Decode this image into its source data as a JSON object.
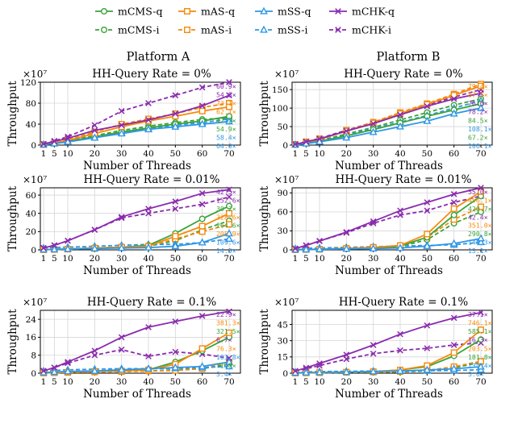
{
  "colors": {
    "mCMS": "#3aa33a",
    "mAS": "#f58a0b",
    "mSS": "#2f97e6",
    "mCHK": "#8a2bae"
  },
  "legend": [
    {
      "key": "mCMS-q",
      "label": "mCMS-q",
      "color": "mCMS",
      "marker": "circle",
      "dash": false
    },
    {
      "key": "mAS-q",
      "label": "mAS-q",
      "color": "mAS",
      "marker": "square",
      "dash": false
    },
    {
      "key": "mSS-q",
      "label": "mSS-q",
      "color": "mSS",
      "marker": "triangle",
      "dash": false
    },
    {
      "key": "mCHK-q",
      "label": "mCHK-q",
      "color": "mCHK",
      "marker": "x",
      "dash": false
    },
    {
      "key": "mCMS-i",
      "label": "mCMS-i",
      "color": "mCMS",
      "marker": "circle",
      "dash": true
    },
    {
      "key": "mAS-i",
      "label": "mAS-i",
      "color": "mAS",
      "marker": "square",
      "dash": true
    },
    {
      "key": "mSS-i",
      "label": "mSS-i",
      "color": "mSS",
      "marker": "triangle",
      "dash": true
    },
    {
      "key": "mCHK-i",
      "label": "mCHK-i",
      "color": "mCHK",
      "marker": "x",
      "dash": true
    }
  ],
  "platforms": [
    "Platform A",
    "Platform B"
  ],
  "chart_data": [
    {
      "type": "line",
      "title": "HH-Query Rate = 0%",
      "scale_label": "×10⁷",
      "x": [
        1,
        5,
        10,
        20,
        30,
        40,
        50,
        60,
        70
      ],
      "xlabel": "Number of Threads",
      "ylabel": "Throughput",
      "ylim": [
        0,
        120
      ],
      "yticks": [
        0,
        40,
        80,
        120
      ],
      "series": [
        {
          "name": "mCMS-q",
          "values": [
            1,
            3,
            7,
            16,
            25,
            33,
            40,
            46,
            55
          ],
          "annotation": "42.2×",
          "anno_color": "mCMS"
        },
        {
          "name": "mCMS-i",
          "values": [
            1,
            3.5,
            8,
            18,
            28,
            36,
            43,
            49,
            52
          ],
          "annotation": "54.9×",
          "anno_color": "mCMS"
        },
        {
          "name": "mAS-q",
          "values": [
            1,
            4,
            9,
            22,
            35,
            46,
            55,
            65,
            73
          ],
          "annotation": "62.1×",
          "anno_color": "mAS"
        },
        {
          "name": "mAS-i",
          "values": [
            1,
            4,
            10,
            25,
            40,
            50,
            60,
            72,
            80
          ],
          "annotation": "73.1×",
          "anno_color": "mAS"
        },
        {
          "name": "mSS-q",
          "values": [
            1,
            3,
            6,
            14,
            22,
            30,
            35,
            40,
            45
          ],
          "annotation": "64.0×",
          "anno_color": "mSS"
        },
        {
          "name": "mSS-i",
          "values": [
            1,
            3,
            7,
            15,
            24,
            32,
            38,
            43,
            50
          ],
          "annotation": "58.4×",
          "anno_color": "mSS"
        },
        {
          "name": "mCHK-q",
          "values": [
            2,
            7,
            13,
            28,
            38,
            48,
            60,
            75,
            95
          ],
          "annotation": "54.8×",
          "anno_color": "mCHK"
        },
        {
          "name": "mCHK-i",
          "values": [
            2,
            8,
            16,
            38,
            65,
            80,
            95,
            110,
            120
          ],
          "annotation": "60.9×",
          "anno_color": "mCHK"
        }
      ]
    },
    {
      "type": "line",
      "title": "HH-Query Rate = 0%",
      "scale_label": "×10⁷",
      "x": [
        1,
        5,
        10,
        20,
        30,
        40,
        50,
        60,
        70
      ],
      "xlabel": "Number of Threads",
      "ylabel": "Throughput",
      "ylim": [
        0,
        170
      ],
      "yticks": [
        0,
        50,
        100,
        150
      ],
      "series": [
        {
          "name": "mCMS-q",
          "values": [
            1,
            5,
            10,
            25,
            42,
            60,
            78,
            95,
            112
          ],
          "annotation": "67.2×",
          "anno_color": "mCMS"
        },
        {
          "name": "mCMS-i",
          "values": [
            1,
            6,
            12,
            30,
            48,
            68,
            88,
            108,
            125
          ],
          "annotation": "84.5×",
          "anno_color": "mCMS"
        },
        {
          "name": "mAS-q",
          "values": [
            2,
            8,
            15,
            38,
            60,
            85,
            110,
            135,
            160
          ],
          "annotation": "87.5×",
          "anno_color": "mAS"
        },
        {
          "name": "mAS-i",
          "values": [
            2,
            9,
            17,
            40,
            62,
            88,
            112,
            138,
            165
          ],
          "annotation": "79.4×",
          "anno_color": "mAS"
        },
        {
          "name": "mSS-q",
          "values": [
            1,
            4,
            9,
            20,
            35,
            50,
            65,
            85,
            100
          ],
          "annotation": "106.1×",
          "anno_color": "mSS"
        },
        {
          "name": "mSS-i",
          "values": [
            1,
            5,
            11,
            26,
            45,
            62,
            80,
            100,
            120
          ],
          "annotation": "108.1×",
          "anno_color": "mSS"
        },
        {
          "name": "mCHK-q",
          "values": [
            2,
            9,
            17,
            38,
            58,
            82,
            105,
            125,
            140
          ],
          "annotation": "78.2×",
          "anno_color": "mCHK"
        },
        {
          "name": "mCHK-i",
          "values": [
            2,
            9,
            18,
            40,
            60,
            85,
            108,
            130,
            150
          ],
          "annotation": "76.6×",
          "anno_color": "mCHK"
        }
      ]
    },
    {
      "type": "line",
      "title": "HH-Query Rate = 0.01%",
      "scale_label": "×10⁷",
      "x": [
        1,
        5,
        10,
        20,
        30,
        40,
        50,
        60,
        70
      ],
      "xlabel": "Number of Threads",
      "ylabel": "Throughput",
      "ylim": [
        0,
        68
      ],
      "yticks": [
        0,
        20,
        40,
        60
      ],
      "series": [
        {
          "name": "mCMS-q",
          "values": [
            0.3,
            0.5,
            1,
            2,
            3,
            5,
            18,
            34,
            48
          ],
          "annotation": "30.2×",
          "anno_color": "mCMS"
        },
        {
          "name": "mCMS-i",
          "values": [
            0.3,
            0.5,
            1,
            2,
            3,
            4,
            10,
            22,
            32
          ],
          "annotation": "264.6×",
          "anno_color": "mCMS"
        },
        {
          "name": "mAS-q",
          "values": [
            0.2,
            0.4,
            0.8,
            2,
            3,
            4,
            15,
            26,
            40
          ],
          "annotation": "328.6×",
          "anno_color": "mAS"
        },
        {
          "name": "mAS-i",
          "values": [
            0.2,
            0.4,
            0.8,
            1.5,
            3,
            4,
            12,
            20,
            28
          ],
          "annotation": "205.9×",
          "anno_color": "mAS"
        },
        {
          "name": "mSS-q",
          "values": [
            0.3,
            0.5,
            1,
            1.5,
            2,
            2.5,
            4,
            8,
            18
          ],
          "annotation": "109.6×",
          "anno_color": "mSS"
        },
        {
          "name": "mSS-i",
          "values": [
            2,
            2.5,
            3,
            4,
            5,
            6,
            6,
            8,
            12
          ],
          "annotation": "14.5×",
          "anno_color": "mSS"
        },
        {
          "name": "mCHK-q",
          "values": [
            2,
            5,
            10,
            22,
            36,
            45,
            53,
            62,
            66
          ],
          "annotation": "42.5×",
          "anno_color": "mCHK"
        },
        {
          "name": "mCHK-i",
          "values": [
            2,
            5,
            10,
            22,
            35,
            40,
            45,
            50,
            58
          ],
          "annotation": "152.6×",
          "anno_color": "mCHK"
        }
      ]
    },
    {
      "type": "line",
      "title": "HH-Query Rate = 0.01%",
      "scale_label": "×10⁷",
      "x": [
        1,
        5,
        10,
        20,
        30,
        40,
        50,
        60,
        70
      ],
      "xlabel": "Number of Threads",
      "ylabel": "Throughput",
      "ylim": [
        0,
        98
      ],
      "yticks": [
        0,
        30,
        60,
        90
      ],
      "series": [
        {
          "name": "mCMS-q",
          "values": [
            0.3,
            0.5,
            1,
            2,
            3,
            6,
            20,
            55,
            85
          ],
          "annotation": "420.7×",
          "anno_color": "mCMS"
        },
        {
          "name": "mCMS-i",
          "values": [
            0.3,
            0.5,
            1,
            2,
            3,
            5,
            16,
            42,
            60
          ],
          "annotation": "290.8×",
          "anno_color": "mCMS"
        },
        {
          "name": "mAS-q",
          "values": [
            0.3,
            0.6,
            1,
            2.5,
            4,
            7,
            25,
            65,
            92
          ],
          "annotation": "456.1×",
          "anno_color": "mAS"
        },
        {
          "name": "mAS-i",
          "values": [
            0.3,
            0.6,
            1,
            2.5,
            4,
            6,
            20,
            48,
            68
          ],
          "annotation": "351.0×",
          "anno_color": "mAS"
        },
        {
          "name": "mSS-q",
          "values": [
            0.3,
            0.5,
            1,
            1.5,
            2,
            3,
            6,
            10,
            18
          ],
          "annotation": "148.3×",
          "anno_color": "mSS"
        },
        {
          "name": "mSS-i",
          "values": [
            2,
            2.5,
            3,
            4,
            5,
            6,
            7,
            8,
            12
          ],
          "annotation": "13.1×",
          "anno_color": "mSS"
        },
        {
          "name": "mCHK-q",
          "values": [
            2,
            7,
            14,
            28,
            45,
            62,
            75,
            88,
            98
          ],
          "annotation": "55.0×",
          "anno_color": "mCHK"
        },
        {
          "name": "mCHK-i",
          "values": [
            2,
            7,
            14,
            27,
            42,
            55,
            62,
            75,
            85
          ],
          "annotation": "42.4×",
          "anno_color": "mCHK"
        }
      ]
    },
    {
      "type": "line",
      "title": "HH-Query Rate = 0.1%",
      "scale_label": "×10⁷",
      "x": [
        1,
        5,
        10,
        20,
        30,
        40,
        50,
        60,
        70
      ],
      "xlabel": "Number of Threads",
      "ylabel": "Throughput",
      "ylim": [
        0,
        28
      ],
      "yticks": [
        0,
        8,
        16,
        24
      ],
      "series": [
        {
          "name": "mCMS-q",
          "values": [
            0.2,
            0.3,
            0.5,
            0.8,
            1,
            1.5,
            5,
            10,
            16
          ],
          "annotation": "321.5×",
          "anno_color": "mCMS"
        },
        {
          "name": "mCMS-i",
          "values": [
            0.2,
            0.3,
            0.4,
            0.6,
            0.8,
            1,
            1.5,
            2,
            4
          ],
          "annotation": "71.8×",
          "anno_color": "mCMS"
        },
        {
          "name": "mAS-q",
          "values": [
            0.1,
            0.2,
            0.4,
            0.8,
            1,
            1.5,
            4,
            11,
            18
          ],
          "annotation": "381.3×",
          "anno_color": "mAS"
        },
        {
          "name": "mAS-i",
          "values": [
            0.1,
            0.2,
            0.3,
            0.5,
            0.7,
            1,
            1.2,
            2,
            5
          ],
          "annotation": "76.3×",
          "anno_color": "mAS"
        },
        {
          "name": "mSS-q",
          "values": [
            0.3,
            0.5,
            0.8,
            1,
            1.5,
            2,
            2.5,
            3,
            5
          ],
          "annotation": "103.8×",
          "anno_color": "mSS"
        },
        {
          "name": "mSS-i",
          "values": [
            1,
            1.2,
            1.5,
            1.8,
            2,
            2,
            2.2,
            2.5,
            3
          ],
          "annotation": "3.4×",
          "anno_color": "mSS"
        },
        {
          "name": "mCHK-q",
          "values": [
            1,
            2.5,
            5,
            10,
            16,
            20.5,
            23,
            25.5,
            27.5
          ],
          "annotation": "22.9×",
          "anno_color": "mCHK"
        },
        {
          "name": "mCHK-i",
          "values": [
            1,
            2.5,
            4.5,
            8,
            10.5,
            7.5,
            9.5,
            8.5,
            6.7
          ],
          "annotation": "6.7×",
          "anno_color": "mCHK"
        }
      ]
    },
    {
      "type": "line",
      "title": "HH-Query Rate = 0.1%",
      "scale_label": "×10⁷",
      "x": [
        1,
        5,
        10,
        20,
        30,
        40,
        50,
        60,
        70
      ],
      "xlabel": "Number of Threads",
      "ylabel": "Throughput",
      "ylim": [
        0,
        58
      ],
      "yticks": [
        0,
        15,
        30,
        45
      ],
      "series": [
        {
          "name": "mCMS-q",
          "values": [
            0.2,
            0.3,
            0.5,
            1,
            1.5,
            3,
            6,
            16,
            31
          ],
          "annotation": "585.1×",
          "anno_color": "mCMS"
        },
        {
          "name": "mCMS-i",
          "values": [
            0.2,
            0.3,
            0.4,
            0.6,
            0.8,
            1.2,
            2,
            5,
            10
          ],
          "annotation": "181.8×",
          "anno_color": "mCMS"
        },
        {
          "name": "mAS-q",
          "values": [
            0.2,
            0.3,
            0.5,
            1,
            1.5,
            3,
            7,
            19,
            40
          ],
          "annotation": "746.1×",
          "anno_color": "mAS"
        },
        {
          "name": "mAS-i",
          "values": [
            0.2,
            0.3,
            0.5,
            0.8,
            1,
            1.5,
            2.5,
            6,
            11
          ],
          "annotation": "203.5×",
          "anno_color": "mAS"
        },
        {
          "name": "mSS-q",
          "values": [
            0.3,
            0.5,
            0.8,
            1,
            1.5,
            2,
            3,
            4,
            6
          ],
          "annotation": "135.4×",
          "anno_color": "mSS"
        },
        {
          "name": "mSS-i",
          "values": [
            1,
            1.2,
            1.5,
            1.8,
            2,
            2,
            2.2,
            2.5,
            3.2
          ],
          "annotation": "3.0×",
          "anno_color": "mSS"
        },
        {
          "name": "mCHK-q",
          "values": [
            2,
            5,
            9,
            17,
            26,
            36,
            44,
            51,
            56
          ],
          "annotation": "37.1×",
          "anno_color": "mCHK"
        },
        {
          "name": "mCHK-i",
          "values": [
            2,
            4,
            7,
            13,
            18,
            21,
            23,
            26,
            28
          ],
          "annotation": "16.3×",
          "anno_color": "mCHK"
        }
      ]
    }
  ]
}
